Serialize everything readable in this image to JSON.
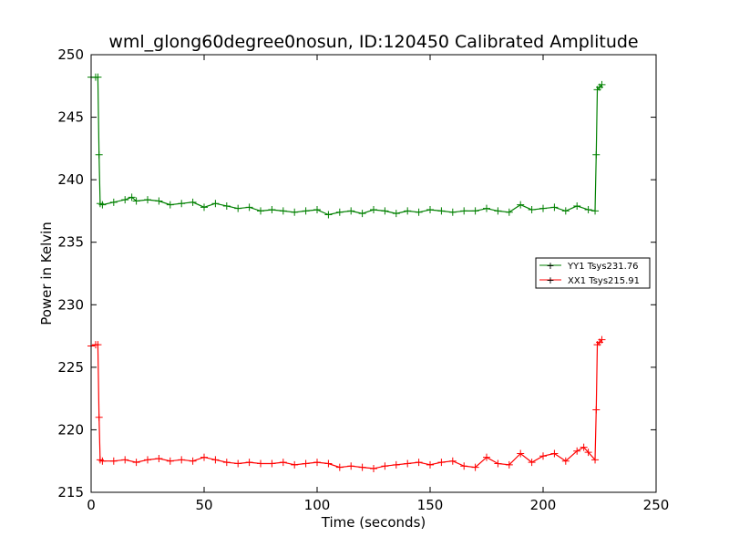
{
  "chart_data": {
    "type": "line",
    "title": "wml_glong60degree0nosun, ID:120450 Calibrated Amplitude",
    "xlabel": "Time (seconds)",
    "ylabel": "Power in Kelvin",
    "xlim": [
      0,
      250
    ],
    "ylim": [
      215,
      250
    ],
    "xticks": [
      "0",
      "50",
      "100",
      "150",
      "200",
      "250"
    ],
    "yticks": [
      "215",
      "220",
      "225",
      "230",
      "235",
      "240",
      "245",
      "250"
    ],
    "grid": false,
    "legend_position": "right-center",
    "series": [
      {
        "name": "YY1 Tsys231.76",
        "color": "#008000",
        "marker": "+",
        "x": [
          0,
          2,
          3,
          3.5,
          4,
          5,
          10,
          15,
          18,
          20,
          25,
          30,
          35,
          40,
          45,
          50,
          55,
          60,
          65,
          70,
          75,
          80,
          85,
          90,
          95,
          100,
          105,
          110,
          115,
          120,
          125,
          130,
          135,
          140,
          145,
          150,
          155,
          160,
          165,
          170,
          175,
          180,
          185,
          190,
          195,
          200,
          205,
          210,
          215,
          220,
          223,
          223.5,
          224,
          225,
          226
        ],
        "y": [
          248.2,
          248.2,
          248.2,
          242.0,
          238.1,
          238.0,
          238.2,
          238.4,
          238.6,
          238.3,
          238.4,
          238.3,
          238.0,
          238.1,
          238.2,
          237.8,
          238.1,
          237.9,
          237.7,
          237.8,
          237.5,
          237.6,
          237.5,
          237.4,
          237.5,
          237.6,
          237.2,
          237.4,
          237.5,
          237.3,
          237.6,
          237.5,
          237.3,
          237.5,
          237.4,
          237.6,
          237.5,
          237.4,
          237.5,
          237.5,
          237.7,
          237.5,
          237.4,
          238.0,
          237.6,
          237.7,
          237.8,
          237.5,
          237.9,
          237.6,
          237.5,
          242.0,
          247.2,
          247.4,
          247.6
        ]
      },
      {
        "name": "XX1 Tsys215.91",
        "color": "#ff0000",
        "marker": "+",
        "x": [
          0,
          2,
          3,
          3.5,
          4,
          5,
          10,
          15,
          20,
          25,
          30,
          35,
          40,
          45,
          50,
          55,
          60,
          65,
          70,
          75,
          80,
          85,
          90,
          95,
          100,
          105,
          110,
          115,
          120,
          125,
          130,
          135,
          140,
          145,
          150,
          155,
          160,
          165,
          170,
          175,
          180,
          185,
          190,
          195,
          200,
          205,
          210,
          215,
          218,
          220,
          223,
          223.5,
          224,
          225,
          226
        ],
        "y": [
          226.7,
          226.8,
          226.8,
          221.0,
          217.6,
          217.5,
          217.5,
          217.6,
          217.4,
          217.6,
          217.7,
          217.5,
          217.6,
          217.5,
          217.8,
          217.6,
          217.4,
          217.3,
          217.4,
          217.3,
          217.3,
          217.4,
          217.2,
          217.3,
          217.4,
          217.3,
          217.0,
          217.1,
          217.0,
          216.9,
          217.1,
          217.2,
          217.3,
          217.4,
          217.2,
          217.4,
          217.5,
          217.1,
          217.0,
          217.8,
          217.3,
          217.2,
          218.1,
          217.4,
          217.9,
          218.1,
          217.5,
          218.3,
          218.6,
          218.2,
          217.6,
          221.6,
          226.8,
          227.0,
          227.2
        ]
      }
    ]
  }
}
